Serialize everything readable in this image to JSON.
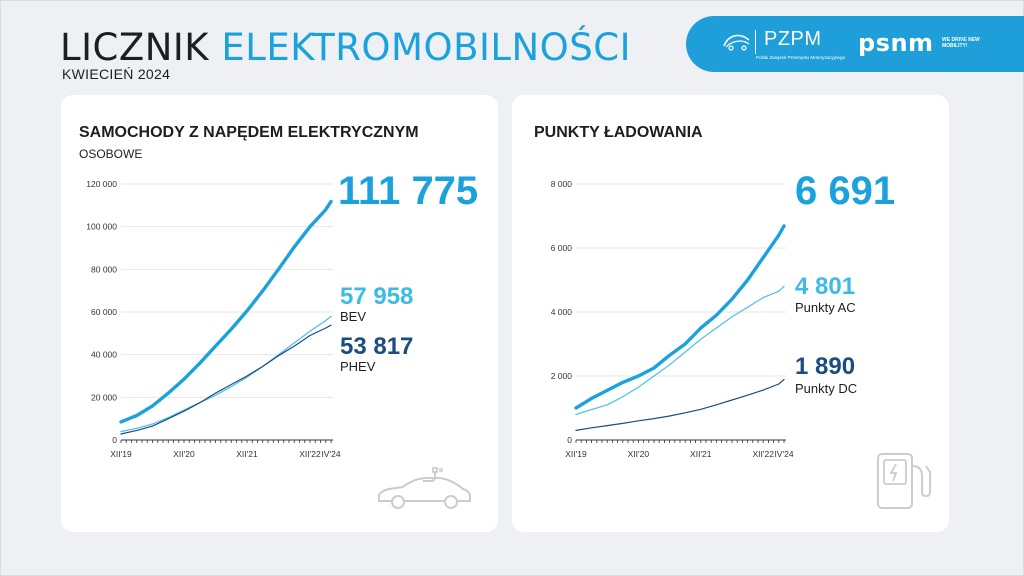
{
  "header": {
    "title_part1": "LICZNIK",
    "title_part2": "ELEKTROMOBILNOŚCI",
    "subtitle": "KWIECIEŃ 2024"
  },
  "logos": {
    "pzpm_name": "PZPM",
    "pzpm_full": "Polski Związek Przemysłu Motoryzacyjnego",
    "psnm_name": "psnm",
    "psnm_tagline": "WE DRIVE NEW MOBILITY!"
  },
  "colors": {
    "accent": "#1ba2dd",
    "light_series": "#3dbbe7",
    "dark_series": "#1b4d82",
    "banner": "#1e9fd9"
  },
  "cards": {
    "left": {
      "title": "SAMOCHODY Z NAPĘDEM ELEKTRYCZNYM",
      "subtitle": "OSOBOWE",
      "total": "111 775",
      "series_a_value": "57 958",
      "series_a_label": "BEV",
      "series_b_value": "53 817",
      "series_b_label": "PHEV",
      "icon": "electric-car-icon"
    },
    "right": {
      "title": "PUNKTY ŁADOWANIA",
      "total": "6 691",
      "series_a_value": "4 801",
      "series_a_label": "Punkty AC",
      "series_b_value": "1 890",
      "series_b_label": "Punkty DC",
      "icon": "charging-station-icon"
    }
  },
  "chart_data": [
    {
      "type": "line",
      "title": "SAMOCHODY Z NAPĘDEM ELEKTRYCZNYM",
      "subtitle": "OSOBOWE",
      "x_ticks": [
        "XII'19",
        "XII'20",
        "XII'21",
        "XII'22",
        "IV'24"
      ],
      "x": [
        0,
        3,
        6,
        9,
        12,
        15,
        18,
        21,
        24,
        27,
        30,
        33,
        36,
        39,
        40
      ],
      "ylim": [
        0,
        120000
      ],
      "y_ticks": [
        "0",
        "20 000",
        "40 000",
        "60 000",
        "80 000",
        "100 000",
        "120 000"
      ],
      "y_tick_values": [
        0,
        20000,
        40000,
        60000,
        80000,
        100000,
        120000
      ],
      "grid": true,
      "series": [
        {
          "name": "",
          "values": [
            8500,
            11500,
            16000,
            22000,
            28500,
            36000,
            44000,
            52000,
            60500,
            70000,
            80000,
            90500,
            100000,
            108000,
            111775
          ]
        },
        {
          "name": "BEV",
          "values": [
            4000,
            5500,
            7500,
            10500,
            14000,
            17500,
            21000,
            25000,
            29500,
            34500,
            40000,
            45500,
            51000,
            56000,
            57958
          ]
        },
        {
          "name": "PHEV",
          "values": [
            2800,
            4500,
            6500,
            10000,
            13500,
            17500,
            22000,
            26000,
            30000,
            34500,
            39500,
            44000,
            49000,
            52500,
            53817
          ]
        }
      ],
      "end_labels": [
        "111 775",
        "57 958",
        "53 817"
      ]
    },
    {
      "type": "line",
      "title": "PUNKTY ŁADOWANIA",
      "x_ticks": [
        "XII'19",
        "XII'20",
        "XII'21",
        "XII'22",
        "IV'24"
      ],
      "x": [
        0,
        3,
        6,
        9,
        12,
        15,
        18,
        21,
        24,
        27,
        30,
        33,
        36,
        39,
        40
      ],
      "ylim": [
        0,
        8000
      ],
      "y_ticks": [
        "0",
        "2 000",
        "4 000",
        "6 000",
        "8 000"
      ],
      "y_tick_values": [
        0,
        2000,
        4000,
        6000,
        8000
      ],
      "grid": true,
      "series": [
        {
          "name": "",
          "values": [
            1000,
            1300,
            1550,
            1800,
            2000,
            2250,
            2650,
            3000,
            3500,
            3900,
            4400,
            5000,
            5700,
            6400,
            6691
          ]
        },
        {
          "name": "Punkty AC",
          "values": [
            800,
            950,
            1100,
            1350,
            1650,
            2000,
            2350,
            2750,
            3150,
            3500,
            3850,
            4150,
            4450,
            4650,
            4801
          ]
        },
        {
          "name": "Punkty DC",
          "values": [
            300,
            380,
            450,
            520,
            600,
            670,
            750,
            850,
            960,
            1100,
            1250,
            1400,
            1560,
            1750,
            1890
          ]
        }
      ],
      "end_labels": [
        "6 691",
        "4 801",
        "1 890"
      ]
    }
  ]
}
